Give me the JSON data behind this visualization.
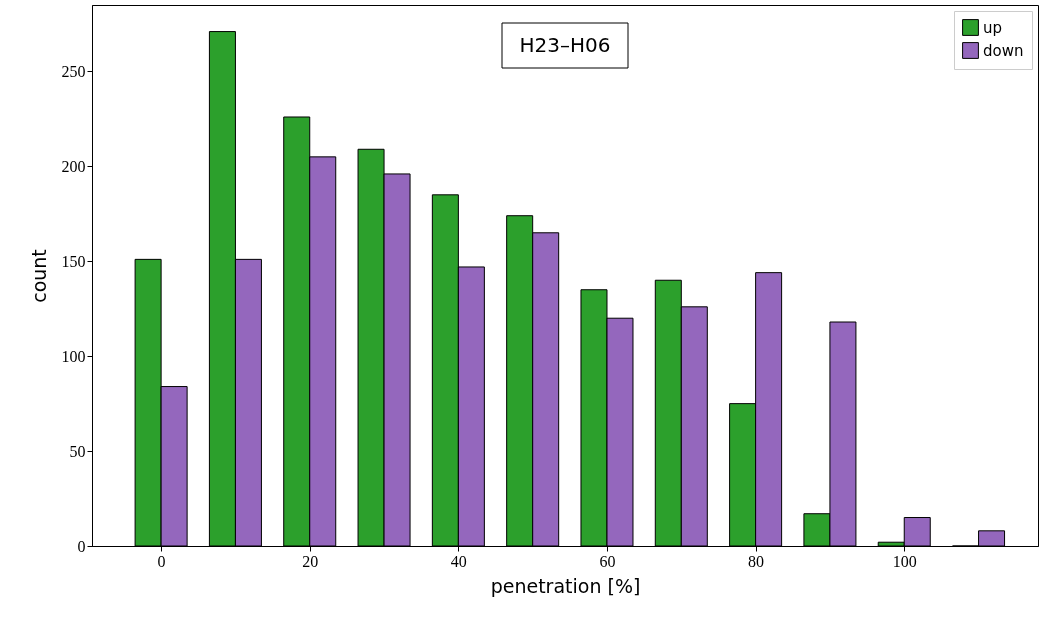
{
  "chart_data": {
    "type": "bar",
    "title": "H23–H06",
    "xlabel": "penetration [%]",
    "ylabel": "count",
    "x": [
      0,
      10,
      20,
      30,
      40,
      50,
      60,
      70,
      80,
      90,
      100,
      110
    ],
    "series": [
      {
        "name": "up",
        "color": "#2ca02c",
        "values": [
          151,
          271,
          226,
          209,
          185,
          174,
          135,
          140,
          75,
          17,
          2,
          0
        ]
      },
      {
        "name": "down",
        "color": "#9467bd",
        "values": [
          84,
          151,
          205,
          196,
          147,
          165,
          120,
          126,
          144,
          118,
          15,
          8
        ]
      }
    ],
    "xlim": [
      -9.3,
      118
    ],
    "xticks": [
      0,
      20,
      40,
      60,
      80,
      100
    ],
    "ylim": [
      0,
      285
    ],
    "yticks": [
      0,
      50,
      100,
      150,
      200,
      250
    ],
    "grid": false,
    "legend": "top right"
  }
}
